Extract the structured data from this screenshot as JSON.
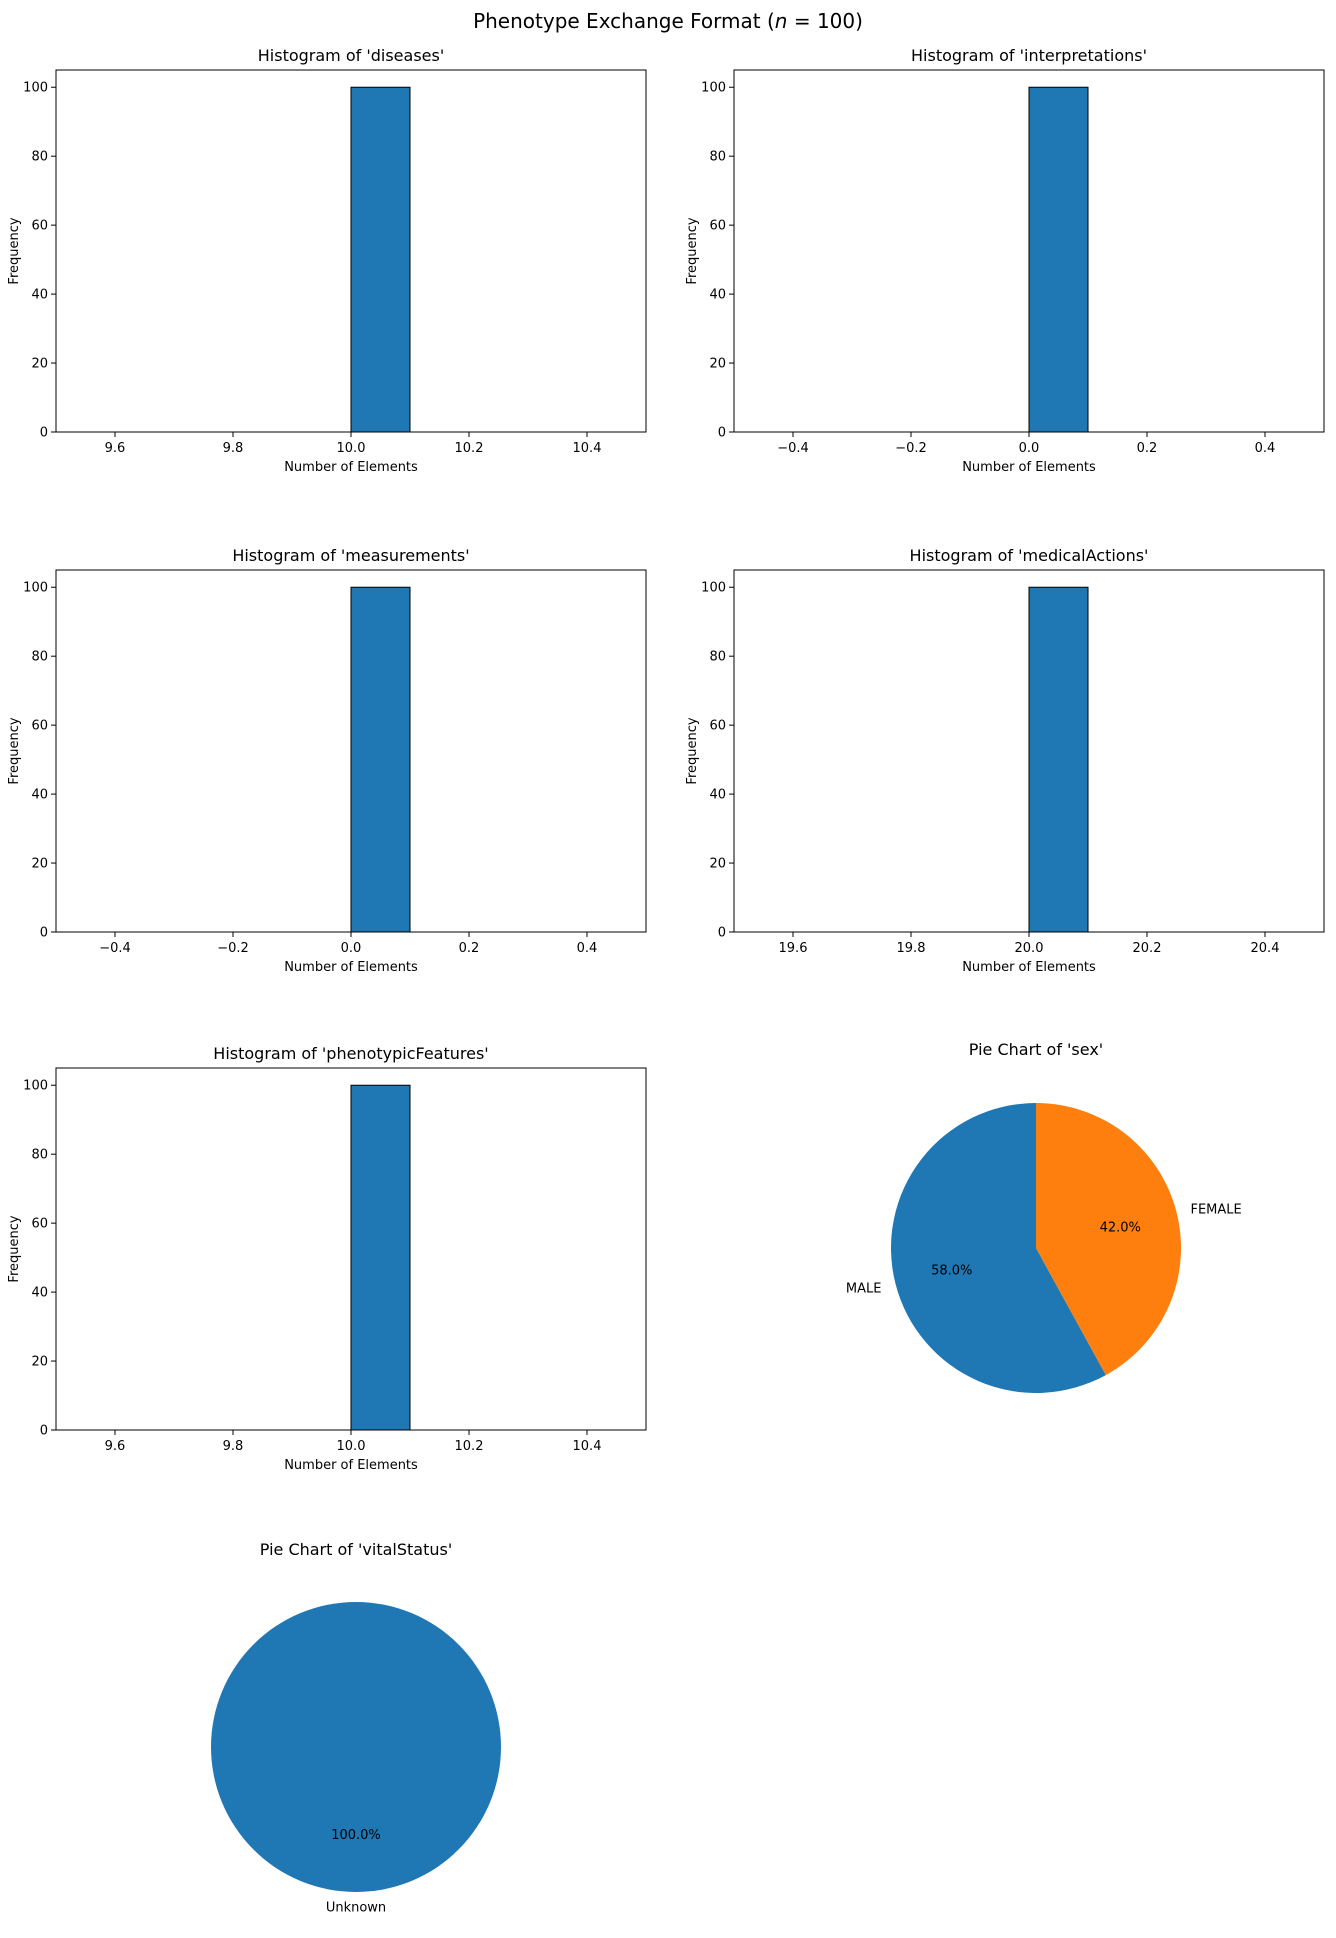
{
  "figure": {
    "title_main": "Phenotype Exchange Format (",
    "title_var": "n",
    "title_rest": " = 100)"
  },
  "chart_data": [
    {
      "type": "bar",
      "kind": "histogram",
      "title": "Histogram of 'diseases'",
      "xlabel": "Number of Elements",
      "ylabel": "Frequency",
      "bins": [
        {
          "start": 10.0,
          "end": 10.1,
          "count": 100
        }
      ],
      "xlim": [
        9.5,
        10.5
      ],
      "ylim": [
        0,
        105
      ],
      "xticks": [
        9.6,
        9.8,
        10.0,
        10.2,
        10.4
      ],
      "xtick_labels": [
        "9.6",
        "9.8",
        "10.0",
        "10.2",
        "10.4"
      ],
      "yticks": [
        0,
        20,
        40,
        60,
        80,
        100
      ],
      "ytick_labels": [
        "0",
        "20",
        "40",
        "60",
        "80",
        "100"
      ],
      "color": "#1f77b4"
    },
    {
      "type": "bar",
      "kind": "histogram",
      "title": "Histogram of 'interpretations'",
      "xlabel": "Number of Elements",
      "ylabel": "Frequency",
      "bins": [
        {
          "start": 0.0,
          "end": 0.1,
          "count": 100
        }
      ],
      "xlim": [
        -0.5,
        0.5
      ],
      "ylim": [
        0,
        105
      ],
      "xticks": [
        -0.4,
        -0.2,
        0.0,
        0.2,
        0.4
      ],
      "xtick_labels": [
        "−0.4",
        "−0.2",
        "0.0",
        "0.2",
        "0.4"
      ],
      "yticks": [
        0,
        20,
        40,
        60,
        80,
        100
      ],
      "ytick_labels": [
        "0",
        "20",
        "40",
        "60",
        "80",
        "100"
      ],
      "color": "#1f77b4"
    },
    {
      "type": "bar",
      "kind": "histogram",
      "title": "Histogram of 'measurements'",
      "xlabel": "Number of Elements",
      "ylabel": "Frequency",
      "bins": [
        {
          "start": 0.0,
          "end": 0.1,
          "count": 100
        }
      ],
      "xlim": [
        -0.5,
        0.5
      ],
      "ylim": [
        0,
        105
      ],
      "xticks": [
        -0.4,
        -0.2,
        0.0,
        0.2,
        0.4
      ],
      "xtick_labels": [
        "−0.4",
        "−0.2",
        "0.0",
        "0.2",
        "0.4"
      ],
      "yticks": [
        0,
        20,
        40,
        60,
        80,
        100
      ],
      "ytick_labels": [
        "0",
        "20",
        "40",
        "60",
        "80",
        "100"
      ],
      "color": "#1f77b4"
    },
    {
      "type": "bar",
      "kind": "histogram",
      "title": "Histogram of 'medicalActions'",
      "xlabel": "Number of Elements",
      "ylabel": "Frequency",
      "bins": [
        {
          "start": 20.0,
          "end": 20.1,
          "count": 100
        }
      ],
      "xlim": [
        19.5,
        20.5
      ],
      "ylim": [
        0,
        105
      ],
      "xticks": [
        19.6,
        19.8,
        20.0,
        20.2,
        20.4
      ],
      "xtick_labels": [
        "19.6",
        "19.8",
        "20.0",
        "20.2",
        "20.4"
      ],
      "yticks": [
        0,
        20,
        40,
        60,
        80,
        100
      ],
      "ytick_labels": [
        "0",
        "20",
        "40",
        "60",
        "80",
        "100"
      ],
      "color": "#1f77b4"
    },
    {
      "type": "bar",
      "kind": "histogram",
      "title": "Histogram of 'phenotypicFeatures'",
      "xlabel": "Number of Elements",
      "ylabel": "Frequency",
      "bins": [
        {
          "start": 10.0,
          "end": 10.1,
          "count": 100
        }
      ],
      "xlim": [
        9.5,
        10.5
      ],
      "ylim": [
        0,
        105
      ],
      "xticks": [
        9.6,
        9.8,
        10.0,
        10.2,
        10.4
      ],
      "xtick_labels": [
        "9.6",
        "9.8",
        "10.0",
        "10.2",
        "10.4"
      ],
      "yticks": [
        0,
        20,
        40,
        60,
        80,
        100
      ],
      "ytick_labels": [
        "0",
        "20",
        "40",
        "60",
        "80",
        "100"
      ],
      "color": "#1f77b4"
    },
    {
      "type": "pie",
      "title": "Pie Chart of 'sex'",
      "startangle": 90,
      "slices": [
        {
          "label": "MALE",
          "value": 58.0,
          "pct_label": "58.0%",
          "color": "#1f77b4"
        },
        {
          "label": "FEMALE",
          "value": 42.0,
          "pct_label": "42.0%",
          "color": "#ff7f0e"
        }
      ]
    },
    {
      "type": "pie",
      "title": "Pie Chart of 'vitalStatus'",
      "startangle": 90,
      "slices": [
        {
          "label": "Unknown",
          "value": 100.0,
          "pct_label": "100.0%",
          "color": "#1f77b4"
        }
      ]
    }
  ]
}
